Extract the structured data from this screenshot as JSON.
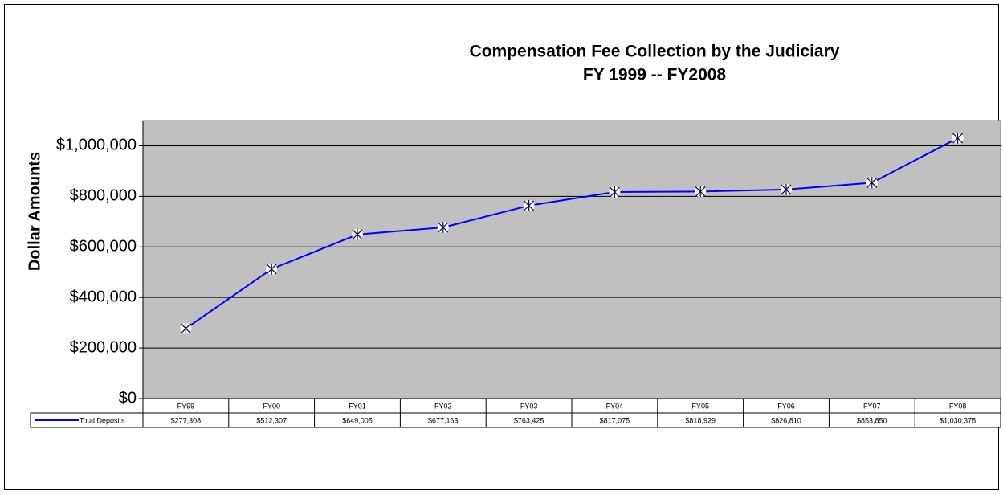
{
  "chart_data": {
    "type": "line",
    "title": "Compensation Fee Collection by the Judiciary",
    "subtitle": "FY 1999 -- FY2008",
    "y_label": "Dollar Amounts",
    "categories": [
      "FY99",
      "FY00",
      "FY01",
      "FY02",
      "FY03",
      "FY04",
      "FY05",
      "FY06",
      "FY07",
      "FY08"
    ],
    "series": [
      {
        "name": "Total Deposits",
        "color": "#0000ff",
        "values": [
          277308,
          512307,
          649005,
          677163,
          763425,
          817075,
          818929,
          826810,
          853850,
          1030378
        ],
        "value_labels": [
          "$277,308",
          "$512,307",
          "$649,005",
          "$677,163",
          "$763,425",
          "$817,075",
          "$818,929",
          "$826,810",
          "$853,850",
          "$1,030,378"
        ]
      }
    ],
    "ylim": [
      0,
      1100000
    ],
    "yticks": [
      {
        "value": 0,
        "label": "$0"
      },
      {
        "value": 200000,
        "label": "$200,000"
      },
      {
        "value": 400000,
        "label": "$400,000"
      },
      {
        "value": 600000,
        "label": "$600,000"
      },
      {
        "value": 800000,
        "label": "$800,000"
      },
      {
        "value": 1000000,
        "label": "$1,000,000"
      }
    ],
    "grid": true
  }
}
